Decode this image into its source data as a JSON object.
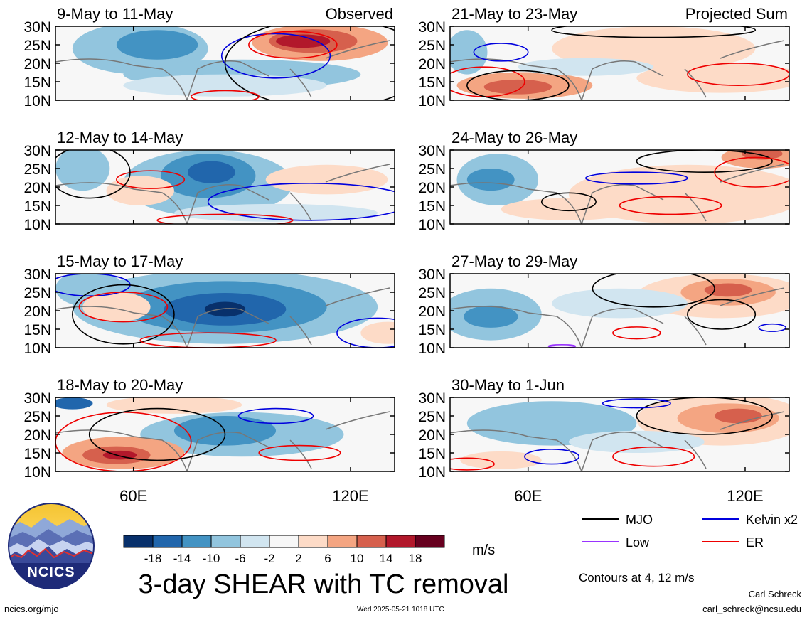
{
  "chart_data": {
    "type": "heatmap",
    "title": "3-day SHEAR with TC removal",
    "units": "m/s",
    "columns": [
      "Observed",
      "Projected Sum"
    ],
    "panels": [
      {
        "column": 0,
        "row": 0,
        "period": "9-May to 11-May"
      },
      {
        "column": 0,
        "row": 1,
        "period": "12-May to 14-May"
      },
      {
        "column": 0,
        "row": 2,
        "period": "15-May to 17-May"
      },
      {
        "column": 0,
        "row": 3,
        "period": "18-May to 20-May"
      },
      {
        "column": 1,
        "row": 0,
        "period": "21-May to 23-May"
      },
      {
        "column": 1,
        "row": 1,
        "period": "24-May to 26-May"
      },
      {
        "column": 1,
        "row": 2,
        "period": "27-May to 29-May"
      },
      {
        "column": 1,
        "row": 3,
        "period": "30-May to 1-Jun"
      }
    ],
    "lat_ticks": [
      "30N",
      "25N",
      "20N",
      "15N",
      "10N"
    ],
    "lon_ticks": [
      "60E",
      "120E"
    ],
    "colorbar": {
      "labels": [
        "-18",
        "-14",
        "-10",
        "-6",
        "-2",
        "2",
        "6",
        "10",
        "14",
        "18"
      ],
      "colors": [
        "#08306b",
        "#2166ac",
        "#4393c3",
        "#92c5de",
        "#d1e5f0",
        "#f7f7f7",
        "#fddbc7",
        "#f4a582",
        "#d6604d",
        "#b2182b",
        "#67001f"
      ]
    },
    "legend": [
      {
        "label": "MJO",
        "color": "#000000"
      },
      {
        "label": "Kelvin x2",
        "color": "#0000dd"
      },
      {
        "label": "Low",
        "color": "#9933ff"
      },
      {
        "label": "ER",
        "color": "#ee0000"
      }
    ],
    "contour_note": "Contours at 4, 12 m/s"
  },
  "footer": {
    "site": "ncics.org/mjo",
    "timestamp": "Wed 2025-05-21 1018 UTC",
    "author": "Carl Schreck",
    "email": "carl_schreck@ncsu.edu",
    "logo_text": "NCICS"
  }
}
